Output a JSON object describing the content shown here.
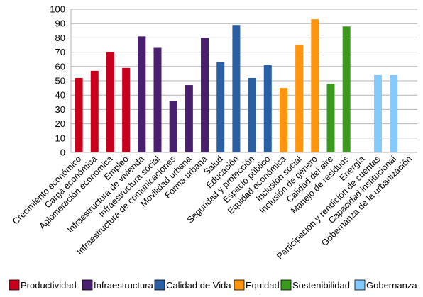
{
  "chart_data": {
    "type": "bar",
    "ylim": [
      0,
      100
    ],
    "yticks": [
      0,
      10,
      20,
      30,
      40,
      50,
      60,
      70,
      80,
      90,
      100
    ],
    "grid": "horizontal",
    "legend_position": "bottom",
    "categories": [
      "Crecimiento económico",
      "Carga económica",
      "Aglomeración económica",
      "Empleo",
      "Infraestructura de vivienda",
      "Infraestructura social",
      "Infraestructura de comunicaciones",
      "Movilidad urbana",
      "Forma urbana",
      "Salud",
      "Educación",
      "Seguridad y protección",
      "Espacio público",
      "Equidad económica",
      "Inclusión social",
      "Inclusión de género",
      "Calidad del aire",
      "Manejo de residuos",
      "Energía",
      "Participación y rendición de cuentas",
      "Capacidad institucional",
      "Gobernanza de la urbanización"
    ],
    "values": [
      52,
      57,
      70,
      59,
      81,
      73,
      36,
      47,
      80,
      63,
      89,
      52,
      61,
      45,
      75,
      93,
      48,
      88,
      null,
      54,
      54,
      null
    ],
    "groups": [
      0,
      0,
      0,
      0,
      1,
      1,
      1,
      1,
      1,
      2,
      2,
      2,
      2,
      3,
      3,
      3,
      4,
      4,
      4,
      5,
      5,
      5
    ],
    "series": [
      {
        "name": "Productividad",
        "color": "#c9001b"
      },
      {
        "name": "Infraestructura",
        "color": "#4b1f6f"
      },
      {
        "name": "Calidad de Vida",
        "color": "#2a5fa4"
      },
      {
        "name": "Equidad",
        "color": "#ff950e"
      },
      {
        "name": "Sostenibilidad",
        "color": "#3b9a1c"
      },
      {
        "name": "Gobernanza",
        "color": "#83caff"
      }
    ]
  }
}
